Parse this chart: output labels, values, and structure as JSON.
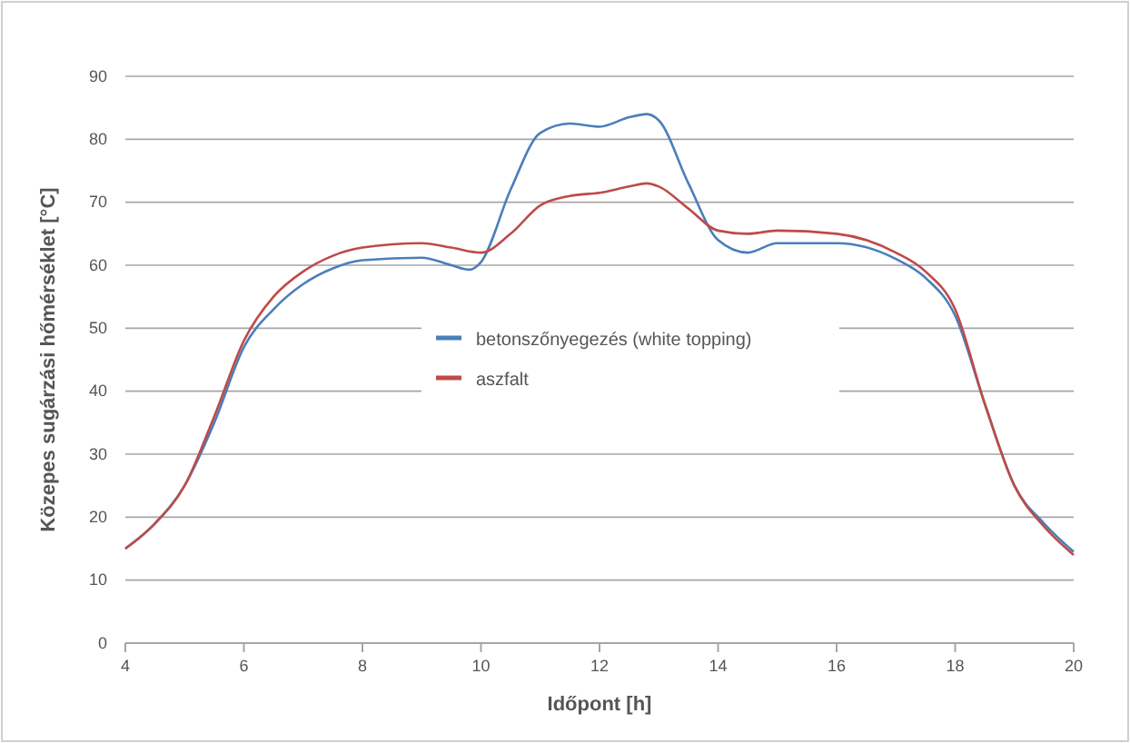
{
  "chart_data": {
    "type": "line",
    "xlabel": "Időpont [h]",
    "ylabel": "Közepes sugárzási hőmérséklet [°C]",
    "xlim": [
      4,
      20
    ],
    "xticks": [
      4,
      6,
      8,
      10,
      12,
      14,
      16,
      18,
      20
    ],
    "ylim": [
      0,
      90
    ],
    "yticks": [
      0,
      10,
      20,
      30,
      40,
      50,
      60,
      70,
      80,
      90
    ],
    "grid": "y",
    "legend": "center",
    "line_style": "solid",
    "marker": "none",
    "series": [
      {
        "name": "betonszőnyegezés (white topping)",
        "color": "#4a7ebb",
        "x": [
          4,
          4.5,
          5,
          5.5,
          6,
          6.5,
          7,
          7.5,
          8,
          9,
          9.5,
          9.8,
          10,
          10.5,
          11,
          11.5,
          12,
          12.5,
          12.8,
          13,
          13.5,
          14,
          14.5,
          15,
          16,
          17,
          17.5,
          18,
          18.5,
          19,
          19.5,
          20
        ],
        "values": [
          15,
          19,
          25,
          35,
          47,
          53,
          57,
          59.5,
          60.8,
          61.2,
          60,
          59.3,
          60.5,
          72,
          81,
          82.5,
          82,
          83.5,
          84,
          83,
          73,
          64,
          62,
          63.5,
          63.5,
          61,
          58,
          52,
          38,
          25,
          19,
          14.5
        ]
      },
      {
        "name": "aszfalt",
        "color": "#be4b48",
        "x": [
          4,
          4.5,
          5,
          5.5,
          6,
          6.5,
          7,
          7.5,
          8,
          9,
          9.5,
          10,
          10.5,
          11,
          11.5,
          12,
          12.5,
          12.8,
          13,
          13.5,
          14,
          14.5,
          15,
          16,
          17,
          17.5,
          18,
          18.5,
          19,
          19.5,
          20
        ],
        "values": [
          15,
          19,
          25,
          36,
          48,
          55,
          59,
          61.5,
          62.8,
          63.5,
          62.8,
          62,
          65,
          69.5,
          71,
          71.5,
          72.5,
          73,
          72.5,
          69,
          65.5,
          65,
          65.5,
          65,
          62,
          59,
          53,
          38,
          25,
          18.5,
          14
        ]
      }
    ]
  }
}
